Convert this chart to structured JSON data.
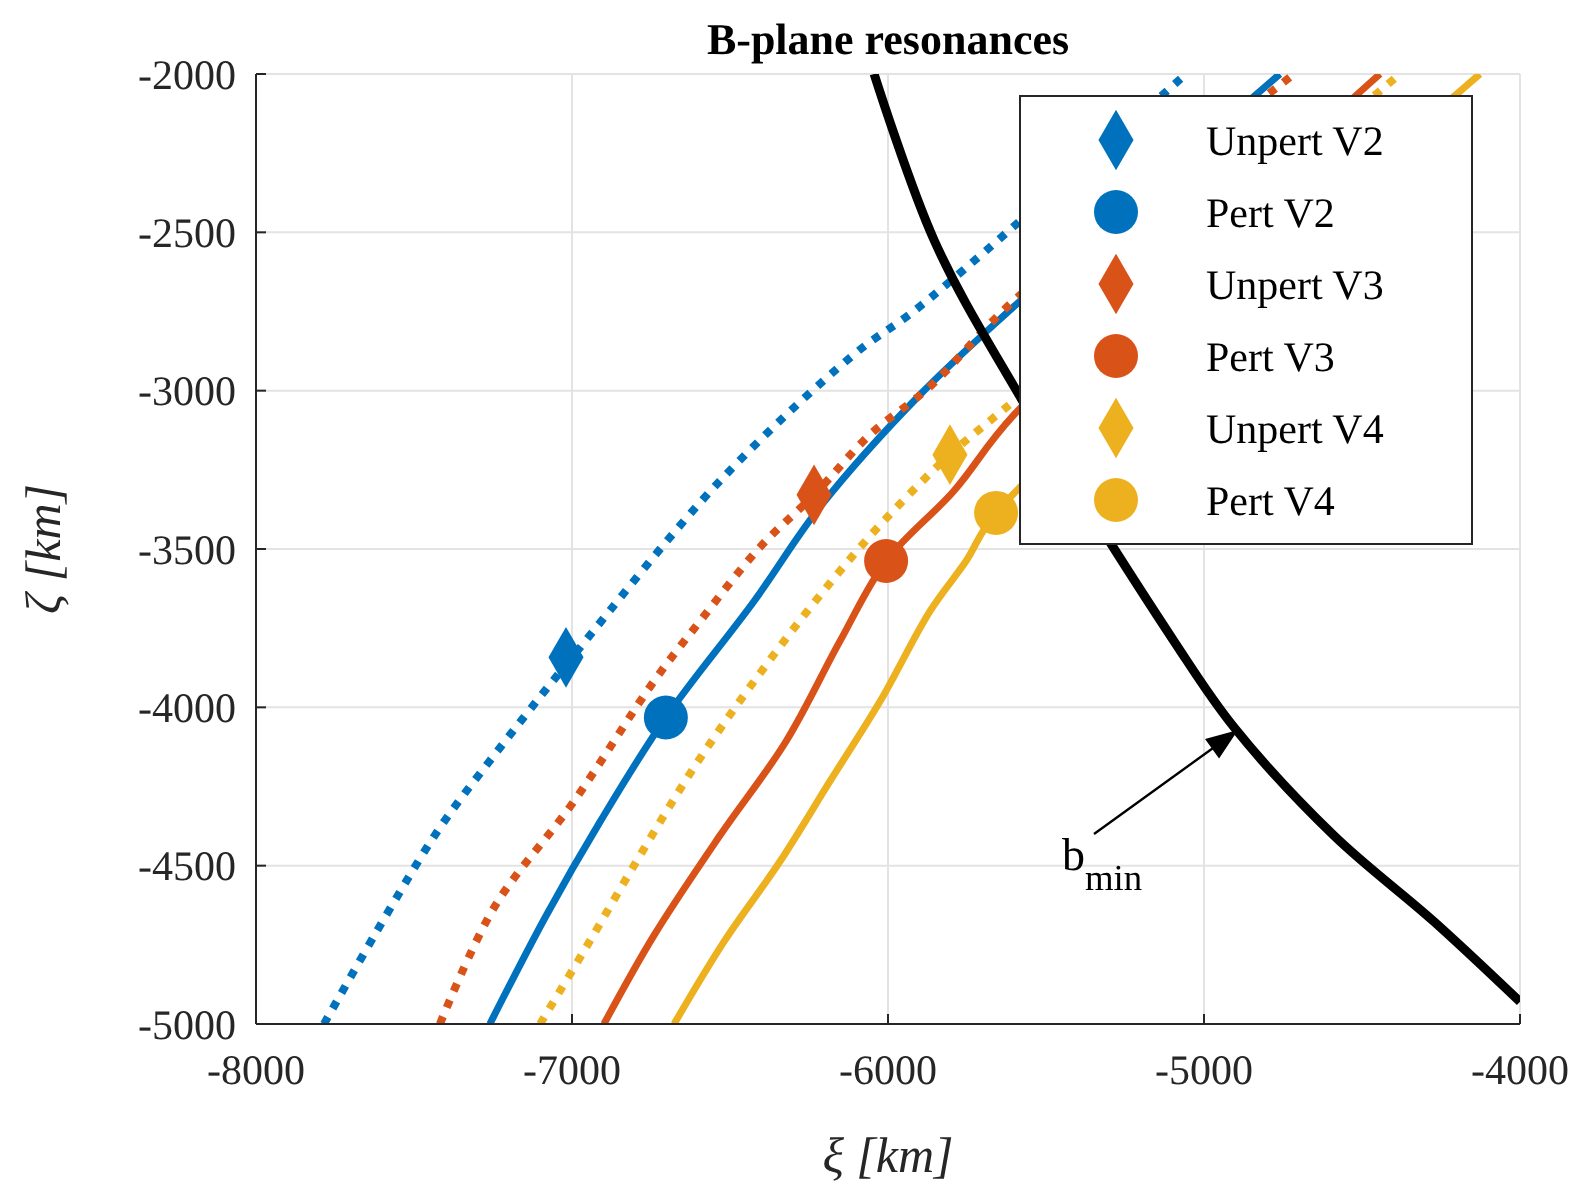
{
  "chart_data": {
    "type": "line",
    "title": "B-plane resonances",
    "xlabel": "ξ [km]",
    "ylabel": "ζ [km]",
    "xlim": [
      -8000,
      -4000
    ],
    "xticks": [
      -8000,
      -7000,
      -6000,
      -5000,
      -4000
    ],
    "ylim": [
      -5000,
      -2000
    ],
    "yticks": [
      -5000,
      -4500,
      -4000,
      -3500,
      -3000,
      -2500,
      -2000
    ],
    "grid": true,
    "legend": "top right",
    "annotations": [
      "b$_{min}$"
    ],
    "series": [
      {
        "color": "#0072bd",
        "line_style": "dotted",
        "x": [
          -7785,
          -7589,
          -7418,
          -7247,
          -6994,
          -6532,
          -6108,
          -5899,
          -5057
        ],
        "values": [
          -5000,
          -4658,
          -4380,
          -4152,
          -3835,
          -3285,
          -2886,
          -2734,
          -2000
        ]
      },
      {
        "color": "#0072bd",
        "line_style": "solid",
        "x": [
          -7260,
          -7082,
          -6911,
          -6703,
          -6424,
          -6215,
          -5899,
          -5601,
          -4760
        ],
        "values": [
          -5000,
          -4658,
          -4361,
          -4032,
          -3665,
          -3367,
          -3013,
          -2734,
          -2000
        ]
      },
      {
        "color": "#d95319",
        "line_style": "dotted",
        "x": [
          -7418,
          -7247,
          -6994,
          -6741,
          -6595,
          -6405,
          -6234,
          -6057,
          -5867,
          -5601,
          -4715
        ],
        "values": [
          -5000,
          -4633,
          -4297,
          -3918,
          -3728,
          -3494,
          -3329,
          -3139,
          -2987,
          -2715,
          -2000
        ]
      },
      {
        "color": "#d95319",
        "line_style": "solid",
        "x": [
          -6899,
          -6741,
          -6532,
          -6323,
          -6152,
          -6006,
          -5791,
          -5601,
          -4443
        ],
        "values": [
          -5000,
          -4721,
          -4405,
          -4108,
          -3791,
          -3538,
          -3316,
          -3076,
          -2000
        ]
      },
      {
        "color": "#edb120",
        "line_style": "dotted",
        "x": [
          -7101,
          -6956,
          -6785,
          -6614,
          -6424,
          -6215,
          -6025,
          -5804,
          -5601,
          -4380
        ],
        "values": [
          -5000,
          -4759,
          -4468,
          -4190,
          -3918,
          -3646,
          -3424,
          -3202,
          -3032,
          -2000
        ]
      },
      {
        "color": "#edb120",
        "line_style": "solid",
        "x": [
          -6677,
          -6519,
          -6342,
          -6184,
          -6025,
          -5867,
          -5753,
          -5658,
          -4127
        ],
        "values": [
          -5000,
          -4740,
          -4487,
          -4234,
          -3981,
          -3696,
          -3538,
          -3386,
          -2000
        ]
      },
      {
        "color": "#000000",
        "line_style": "solid",
        "x": [
          -6044,
          -5854,
          -5601,
          -5095,
          -4905,
          -4589,
          -4272,
          -4000
        ],
        "values": [
          -2000,
          -2525,
          -2987,
          -3791,
          -4063,
          -4405,
          -4677,
          -4930
        ]
      },
      {
        "type": "scatter",
        "name": "Unpert V2",
        "color": "#0072bd",
        "marker": "diamond",
        "x": [
          -7019
        ],
        "values": [
          -3842
        ]
      },
      {
        "type": "scatter",
        "name": "Pert V2",
        "color": "#0072bd",
        "marker": "circle",
        "x": [
          -6703
        ],
        "values": [
          -4032
        ]
      },
      {
        "type": "scatter",
        "name": "Unpert V3",
        "color": "#d95319",
        "marker": "diamond",
        "x": [
          -6234
        ],
        "values": [
          -3329
        ]
      },
      {
        "type": "scatter",
        "name": "Pert V3",
        "color": "#d95319",
        "marker": "circle",
        "x": [
          -6006
        ],
        "values": [
          -3538
        ]
      },
      {
        "type": "scatter",
        "name": "Unpert V4",
        "color": "#edb120",
        "marker": "diamond",
        "x": [
          -5804
        ],
        "values": [
          -3202
        ]
      },
      {
        "type": "scatter",
        "name": "Pert V4",
        "color": "#edb120",
        "marker": "circle",
        "x": [
          -5658
        ],
        "values": [
          -3386
        ]
      }
    ]
  }
}
